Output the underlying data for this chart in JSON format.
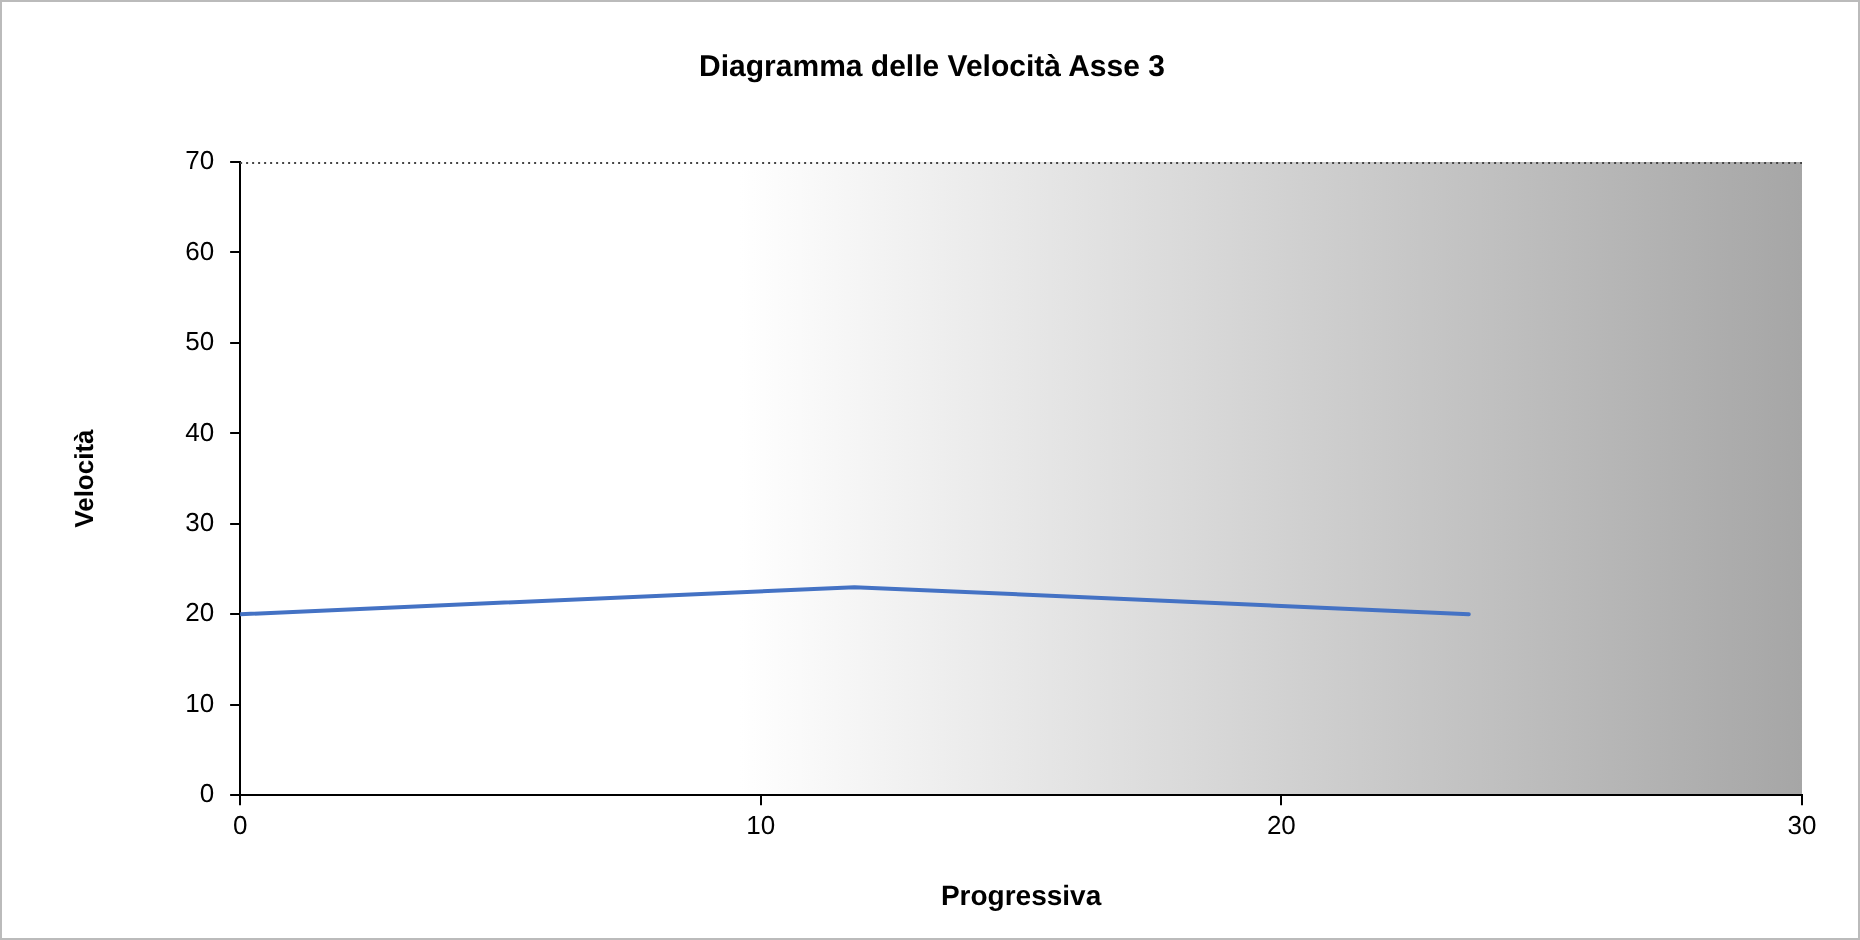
{
  "chart_data": {
    "type": "line",
    "title": "Diagramma delle Velocità Asse 3",
    "xlabel": "Progressiva",
    "ylabel": "Velocità",
    "x": [
      0,
      11.8,
      23.6
    ],
    "series": [
      {
        "color": "#4472c4",
        "values": [
          20,
          23,
          20
        ]
      }
    ],
    "xlim": [
      0,
      30
    ],
    "xticks": [
      0,
      10,
      20,
      30
    ],
    "ylim": [
      0,
      70
    ],
    "yticks": [
      0,
      10,
      20,
      30,
      40,
      50,
      60,
      70
    ],
    "grid": false,
    "legend": false,
    "marker": "none",
    "line_style": "solid"
  }
}
